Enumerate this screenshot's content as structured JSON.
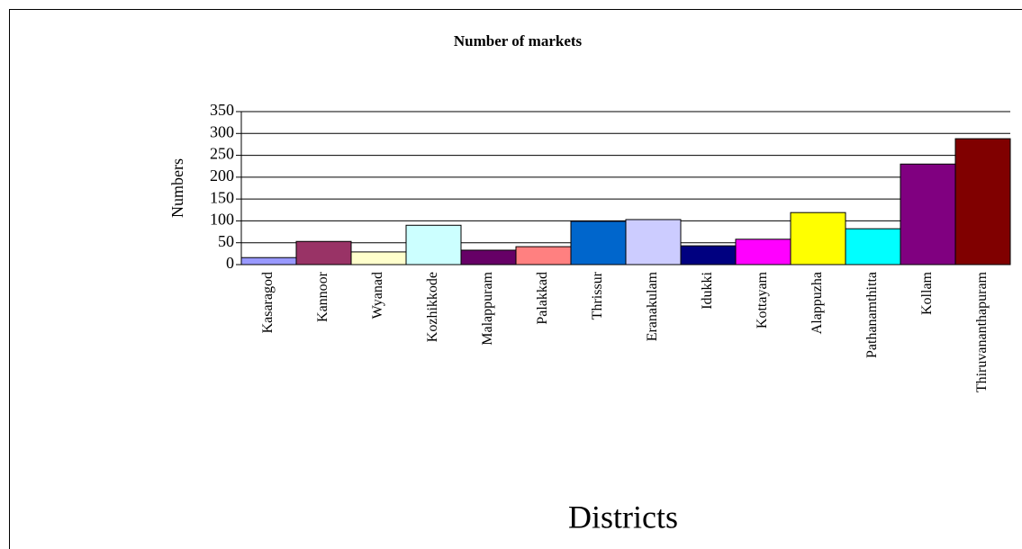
{
  "chart_data": {
    "type": "bar",
    "title": "Number of markets",
    "ylabel": "Numbers",
    "xlabel": "Districts",
    "categories": [
      "Kasaragod",
      "Kannoor",
      "Wyanad",
      "Kozhikkode",
      "Malappuram",
      "Palakkad",
      "Thrissur",
      "Eranakulam",
      "Idukki",
      "Kottayam",
      "Alappuzha",
      "Pathanamthitta",
      "Kollam",
      "Thiruvananthapuram"
    ],
    "values": [
      16,
      53,
      29,
      90,
      33,
      41,
      99,
      103,
      43,
      58,
      119,
      82,
      230,
      288
    ],
    "colors": [
      "#9999ff",
      "#993366",
      "#ffffcc",
      "#ccffff",
      "#660066",
      "#ff8080",
      "#0066cc",
      "#ccccff",
      "#000080",
      "#ff00ff",
      "#ffff00",
      "#00ffff",
      "#800080",
      "#800000"
    ],
    "ylim": [
      0,
      350
    ],
    "yticks": [
      0,
      50,
      100,
      150,
      200,
      250,
      300,
      350
    ],
    "grid": true
  }
}
